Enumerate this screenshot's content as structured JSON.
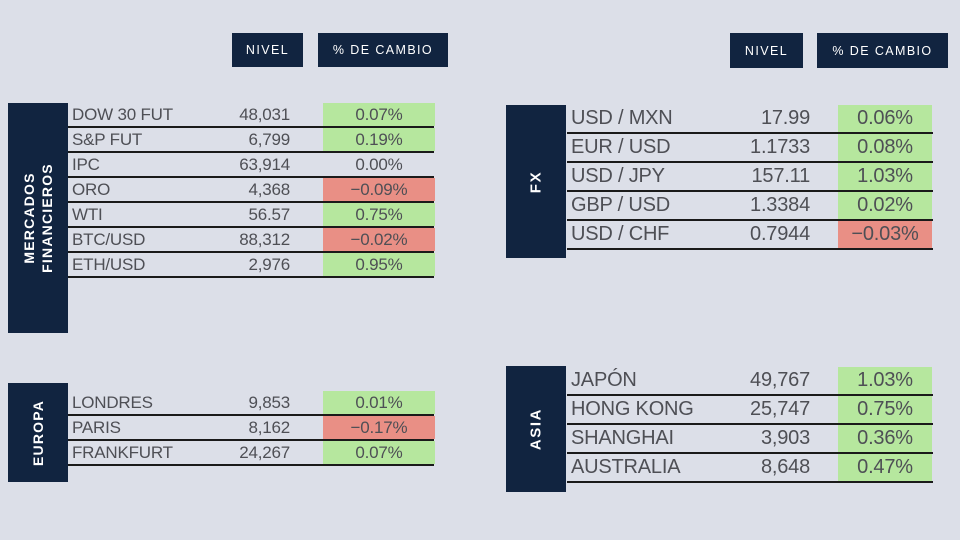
{
  "colors": {
    "background": "#dcdfe8",
    "navy": "#112440",
    "green": "#b6e79e",
    "red": "#e98f85",
    "text": "#4e4f55",
    "line": "#1a1a1a",
    "white": "#ffffff"
  },
  "column_headers": {
    "nivel": "NIVEL",
    "cambio": "% DE CAMBIO"
  },
  "chart_data": [
    {
      "type": "table",
      "id": "mercados",
      "section_label": [
        "MERCADOS",
        "FINANCIEROS"
      ],
      "columns": [
        "",
        "NIVEL",
        "% DE CAMBIO"
      ],
      "rows": [
        {
          "name": "DOW 30 FUT",
          "level": "48,031",
          "change": "0.07%",
          "direction": "up"
        },
        {
          "name": "S&P FUT",
          "level": "6,799",
          "change": "0.19%",
          "direction": "up"
        },
        {
          "name": "IPC",
          "level": "63,914",
          "change": "0.00%",
          "direction": "flat"
        },
        {
          "name": "ORO",
          "level": "4,368",
          "change": "−0.09%",
          "direction": "down"
        },
        {
          "name": "WTI",
          "level": "56.57",
          "change": "0.75%",
          "direction": "up"
        },
        {
          "name": "BTC/USD",
          "level": "88,312",
          "change": "−0.02%",
          "direction": "down"
        },
        {
          "name": "ETH/USD",
          "level": "2,976",
          "change": "0.95%",
          "direction": "up"
        }
      ]
    },
    {
      "type": "table",
      "id": "fx",
      "section_label": [
        "FX"
      ],
      "columns": [
        "",
        "NIVEL",
        "% DE CAMBIO"
      ],
      "rows": [
        {
          "name": "USD / MXN",
          "level": "17.99",
          "change": "0.06%",
          "direction": "up"
        },
        {
          "name": "EUR / USD",
          "level": "1.1733",
          "change": "0.08%",
          "direction": "up"
        },
        {
          "name": "USD / JPY",
          "level": "157.11",
          "change": "1.03%",
          "direction": "up"
        },
        {
          "name": "GBP / USD",
          "level": "1.3384",
          "change": "0.02%",
          "direction": "up"
        },
        {
          "name": "USD / CHF",
          "level": "0.7944",
          "change": "−0.03%",
          "direction": "down"
        }
      ]
    },
    {
      "type": "table",
      "id": "europa",
      "section_label": [
        "EUROPA"
      ],
      "columns": [
        "",
        "NIVEL",
        "% DE CAMBIO"
      ],
      "rows": [
        {
          "name": "LONDRES",
          "level": "9,853",
          "change": "0.01%",
          "direction": "up"
        },
        {
          "name": "PARIS",
          "level": "8,162",
          "change": "−0.17%",
          "direction": "down"
        },
        {
          "name": "FRANKFURT",
          "level": "24,267",
          "change": "0.07%",
          "direction": "up"
        }
      ]
    },
    {
      "type": "table",
      "id": "asia",
      "section_label": [
        "ASIA"
      ],
      "columns": [
        "",
        "NIVEL",
        "% DE CAMBIO"
      ],
      "rows": [
        {
          "name": "JAPÓN",
          "level": "49,767",
          "change": "1.03%",
          "direction": "up"
        },
        {
          "name": "HONG KONG",
          "level": "25,747",
          "change": "0.75%",
          "direction": "up"
        },
        {
          "name": "SHANGHAI",
          "level": "3,903",
          "change": "0.36%",
          "direction": "up"
        },
        {
          "name": "AUSTRALIA",
          "level": "8,648",
          "change": "0.47%",
          "direction": "up"
        }
      ]
    }
  ]
}
